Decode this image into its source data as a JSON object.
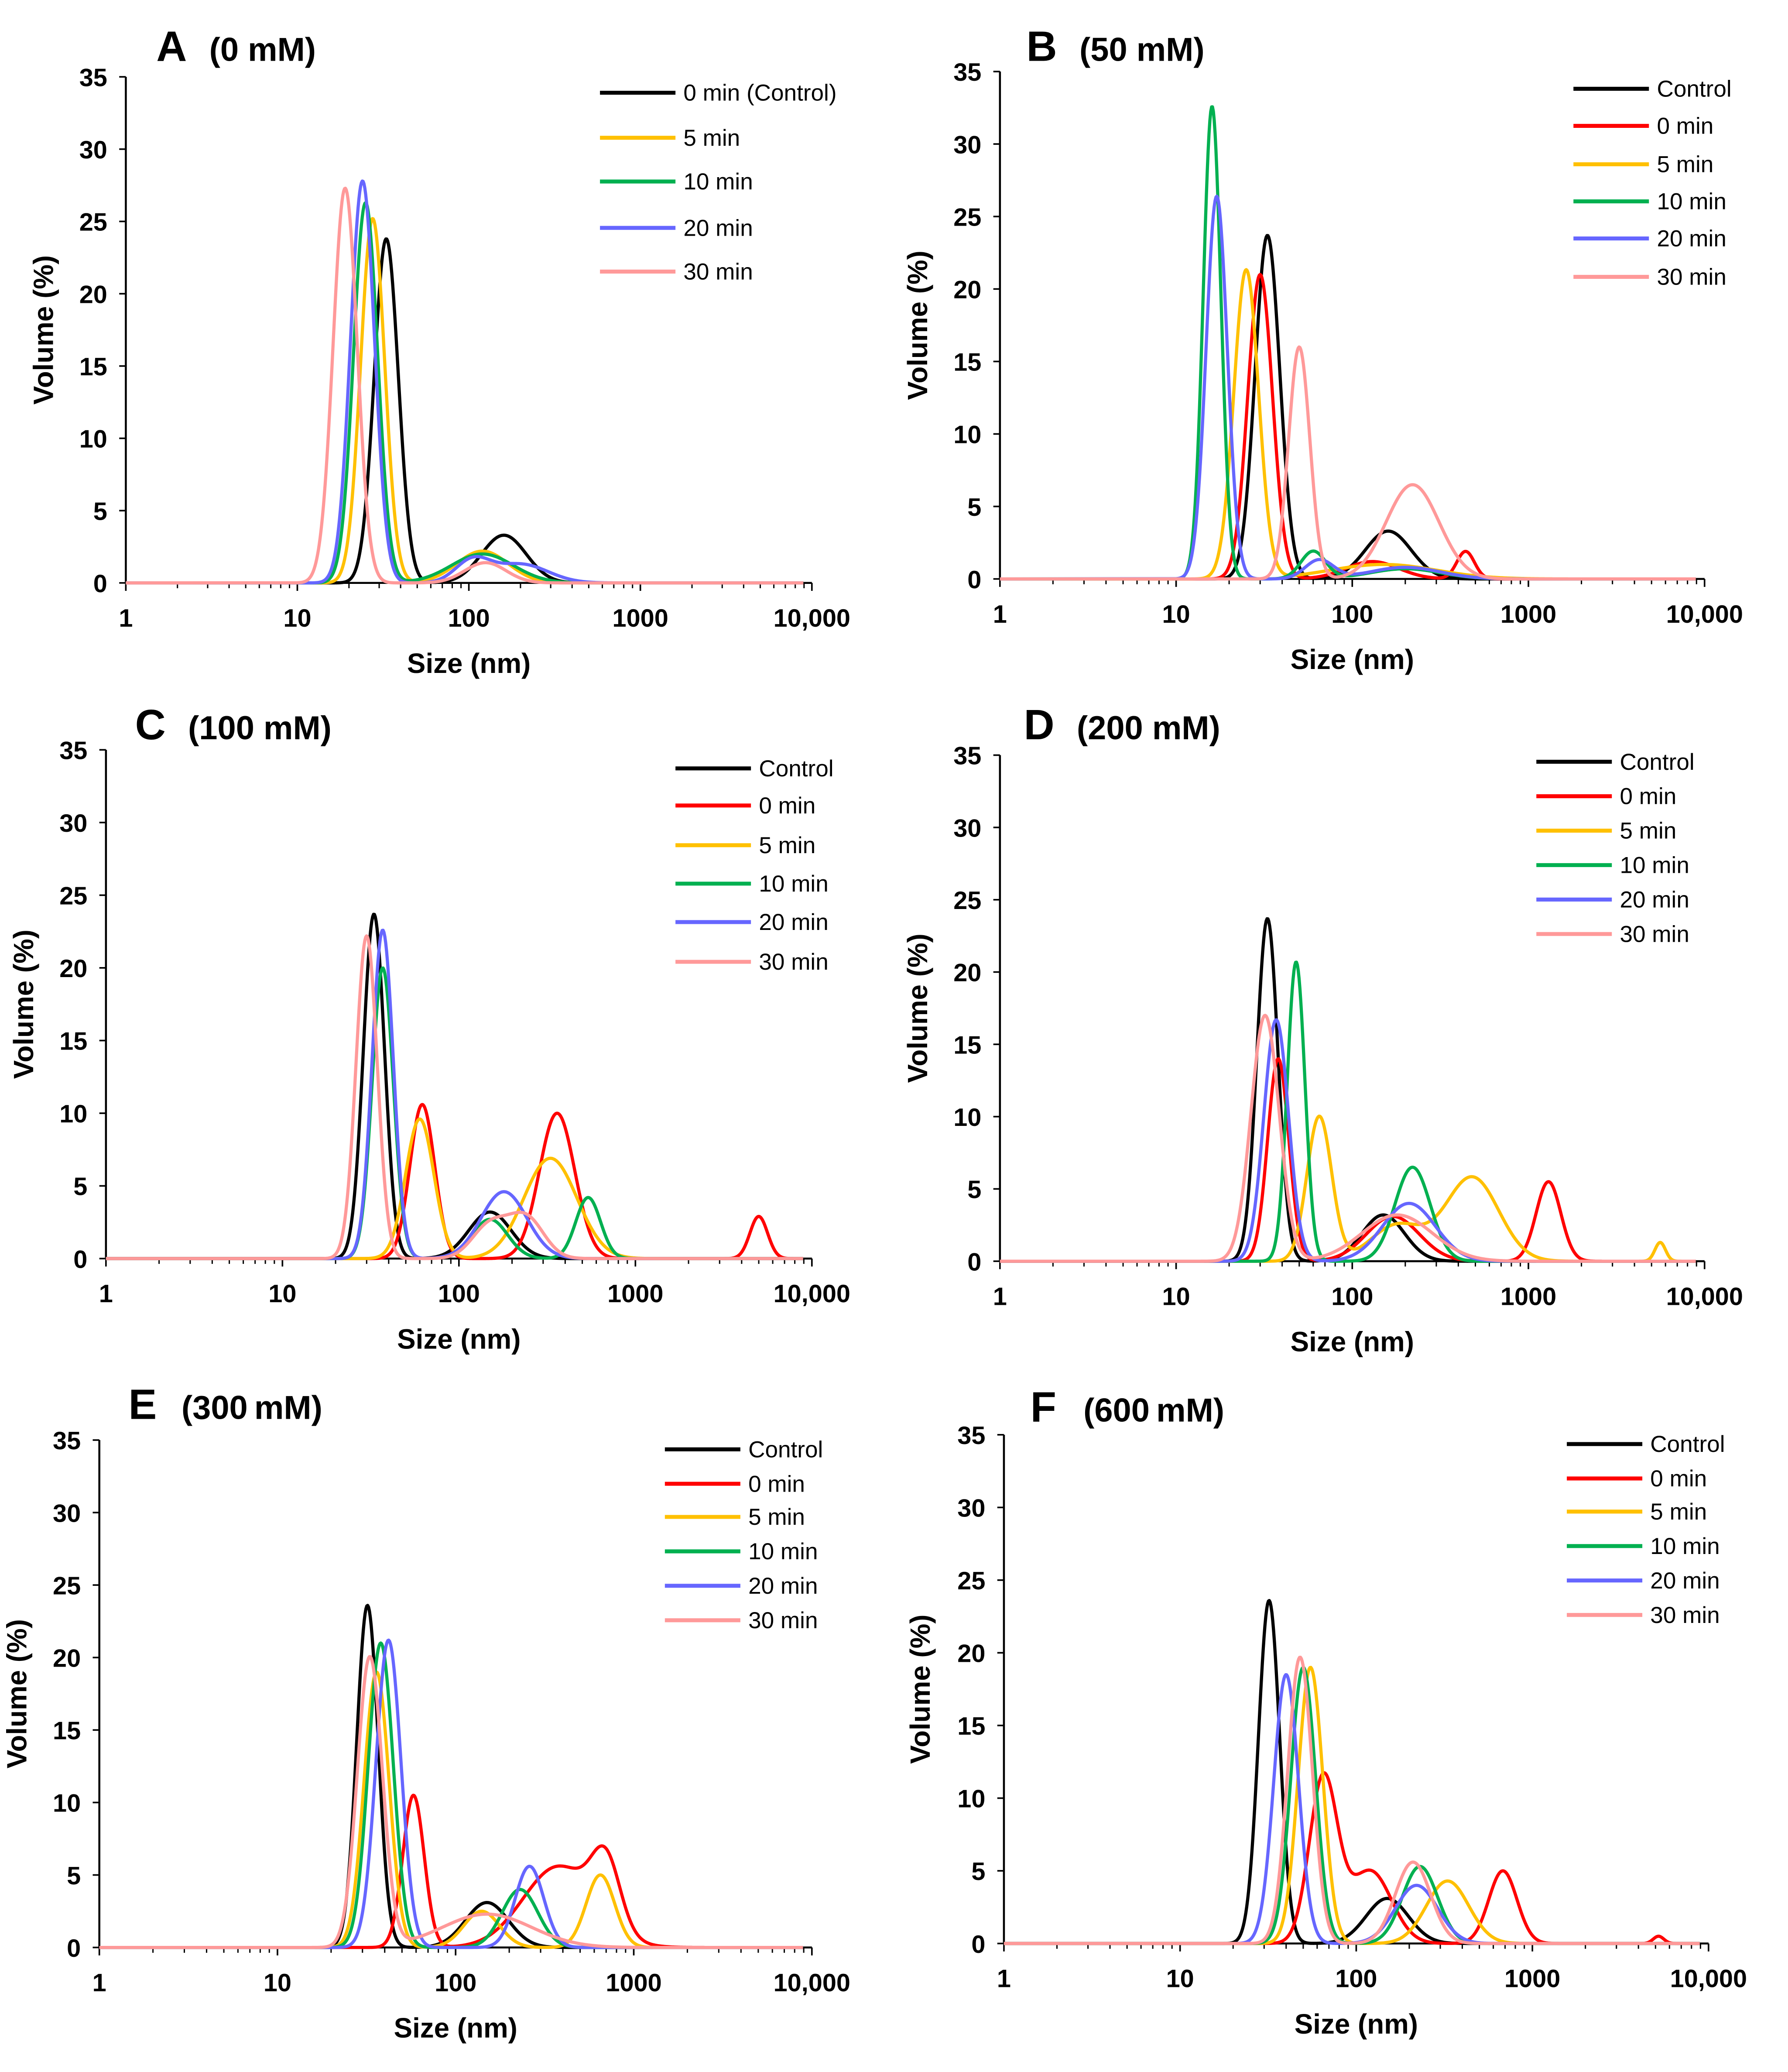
{
  "colors": {
    "Control": "#000000",
    "0 min": "#ff0000",
    "5 min": "#ffc000",
    "10 min": "#00b050",
    "20 min": "#6666ff",
    "30 min": "#ff9999"
  },
  "chart_data": [
    {
      "type": "line",
      "panel": "A",
      "title": "(0 mM)",
      "xlabel": "Size (nm)",
      "ylabel": "Volume (%)",
      "xscale": "log",
      "xlim": [
        1,
        10000
      ],
      "ylim": [
        0,
        35
      ],
      "xticks": [
        "1",
        "10",
        "100",
        "1000",
        "10,000"
      ],
      "yticks": [
        "0",
        "5",
        "10",
        "15",
        "20",
        "25",
        "30",
        "35"
      ],
      "legend": "top-right",
      "peak_model": "gaussian in log10(size): [center_nm, height_pct, width_decades]",
      "series": [
        {
          "name": "0 min (Control)",
          "color_key": "Control",
          "peaks": [
            [
              33,
              23.8,
              0.07
            ],
            [
              160,
              3.3,
              0.13
            ]
          ]
        },
        {
          "name": "5 min",
          "color_key": "5 min",
          "peaks": [
            [
              27.5,
              25.2,
              0.07
            ],
            [
              120,
              2.2,
              0.15
            ]
          ]
        },
        {
          "name": "10 min",
          "color_key": "10 min",
          "peaks": [
            [
              25,
              26.3,
              0.07
            ],
            [
              120,
              2.0,
              0.18
            ]
          ]
        },
        {
          "name": "20 min",
          "color_key": "20 min",
          "peaks": [
            [
              24,
              27.8,
              0.07
            ],
            [
              105,
              1.5,
              0.1
            ],
            [
              200,
              1.3,
              0.16
            ]
          ]
        },
        {
          "name": "30 min",
          "color_key": "30 min",
          "peaks": [
            [
              19,
              27.3,
              0.07
            ],
            [
              125,
              1.4,
              0.12
            ]
          ]
        }
      ]
    },
    {
      "type": "line",
      "panel": "B",
      "title": "(50 mM)",
      "xlabel": "Size (nm)",
      "ylabel": "Volume  (%)",
      "xscale": "log",
      "xlim": [
        1,
        10000
      ],
      "ylim": [
        0,
        35
      ],
      "xticks": [
        "1",
        "10",
        "100",
        "1000",
        "10,000"
      ],
      "yticks": [
        "0",
        "5",
        "10",
        "15",
        "20",
        "25",
        "30",
        "35"
      ],
      "legend": "top-right",
      "series": [
        {
          "name": "Control",
          "color_key": "Control",
          "peaks": [
            [
              33,
              23.7,
              0.07
            ],
            [
              160,
              3.3,
              0.13
            ]
          ]
        },
        {
          "name": "0 min",
          "color_key": "0 min",
          "peaks": [
            [
              30,
              21,
              0.07
            ],
            [
              130,
              1.2,
              0.15
            ],
            [
              440,
              1.9,
              0.05
            ]
          ]
        },
        {
          "name": "5 min",
          "color_key": "5 min",
          "peaks": [
            [
              25,
              21.3,
              0.07
            ],
            [
              150,
              1.0,
              0.3
            ]
          ]
        },
        {
          "name": "10 min",
          "color_key": "10 min",
          "peaks": [
            [
              16,
              32.6,
              0.05
            ],
            [
              60,
              1.9,
              0.07
            ],
            [
              200,
              0.7,
              0.2
            ]
          ]
        },
        {
          "name": "20 min",
          "color_key": "20 min",
          "peaks": [
            [
              17,
              26.4,
              0.06
            ],
            [
              65,
              1.3,
              0.08
            ],
            [
              200,
              0.8,
              0.2
            ]
          ]
        },
        {
          "name": "30 min",
          "color_key": "30 min",
          "peaks": [
            [
              50,
              16,
              0.06
            ],
            [
              220,
              6.5,
              0.15
            ]
          ]
        }
      ]
    },
    {
      "type": "line",
      "panel": "C",
      "title": "(100 mM)",
      "xlabel": "Size (nm)",
      "ylabel": "Volume   (%)",
      "xscale": "log",
      "xlim": [
        1,
        10000
      ],
      "ylim": [
        0,
        35
      ],
      "xticks": [
        "1",
        "10",
        "100",
        "1000",
        "10,000"
      ],
      "yticks": [
        "0",
        "5",
        "10",
        "15",
        "20",
        "25",
        "30",
        "35"
      ],
      "legend": "top-right",
      "series": [
        {
          "name": "Control",
          "color_key": "Control",
          "peaks": [
            [
              33,
              23.7,
              0.06
            ],
            [
              150,
              3.2,
              0.12
            ]
          ]
        },
        {
          "name": "0 min",
          "color_key": "0 min",
          "peaks": [
            [
              62,
              10.6,
              0.07
            ],
            [
              360,
              10,
              0.1
            ],
            [
              5000,
              2.9,
              0.05
            ]
          ]
        },
        {
          "name": "5 min",
          "color_key": "5 min",
          "peaks": [
            [
              60,
              9.6,
              0.08
            ],
            [
              330,
              6.9,
              0.15
            ]
          ]
        },
        {
          "name": "10 min",
          "color_key": "10 min",
          "peaks": [
            [
              37,
              20,
              0.06
            ],
            [
              150,
              2.7,
              0.1
            ],
            [
              540,
              4.2,
              0.07
            ]
          ]
        },
        {
          "name": "20 min",
          "color_key": "20 min",
          "peaks": [
            [
              37,
              22.6,
              0.06
            ],
            [
              180,
              4.6,
              0.13
            ]
          ]
        },
        {
          "name": "30 min",
          "color_key": "30 min",
          "peaks": [
            [
              30,
              22.2,
              0.06
            ],
            [
              150,
              2.3,
              0.1
            ],
            [
              240,
              2.8,
              0.1
            ]
          ]
        }
      ]
    },
    {
      "type": "line",
      "panel": "D",
      "title": "(200 mM)",
      "xlabel": "Size (nm)",
      "ylabel": "Volume   (%)",
      "xscale": "log",
      "xlim": [
        1,
        10000
      ],
      "ylim": [
        0,
        35
      ],
      "xticks": [
        "1",
        "10",
        "100",
        "1000",
        "10,000"
      ],
      "yticks": [
        "0",
        "5",
        "10",
        "15",
        "20",
        "25",
        "30",
        "35"
      ],
      "legend": "top-right",
      "series": [
        {
          "name": "Control",
          "color_key": "Control",
          "peaks": [
            [
              33,
              23.7,
              0.06
            ],
            [
              150,
              3.2,
              0.12
            ]
          ]
        },
        {
          "name": "0 min",
          "color_key": "0 min",
          "peaks": [
            [
              38,
              14,
              0.06
            ],
            [
              170,
              3.1,
              0.15
            ],
            [
              1300,
              5.5,
              0.07
            ]
          ]
        },
        {
          "name": "5 min",
          "color_key": "5 min",
          "peaks": [
            [
              65,
              10,
              0.07
            ],
            [
              180,
              2.5,
              0.15
            ],
            [
              480,
              5.8,
              0.15
            ],
            [
              5600,
              1.3,
              0.03
            ]
          ]
        },
        {
          "name": "10 min",
          "color_key": "10 min",
          "peaks": [
            [
              48,
              20.7,
              0.05
            ],
            [
              220,
              6.5,
              0.1
            ]
          ]
        },
        {
          "name": "20 min",
          "color_key": "20 min",
          "peaks": [
            [
              37,
              16.7,
              0.07
            ],
            [
              210,
              4.0,
              0.15
            ]
          ]
        },
        {
          "name": "30 min",
          "color_key": "30 min",
          "peaks": [
            [
              32,
              17,
              0.08
            ],
            [
              180,
              3.2,
              0.2
            ]
          ]
        }
      ]
    },
    {
      "type": "line",
      "panel": "E",
      "title": "(300 mM)",
      "xlabel": "Size (nm)",
      "ylabel": "Volume   (%)",
      "xscale": "log",
      "xlim": [
        1,
        10000
      ],
      "ylim": [
        0,
        35
      ],
      "xticks": [
        "1",
        "10",
        "100",
        "1000",
        "10,000"
      ],
      "yticks": [
        "0",
        "5",
        "10",
        "15",
        "20",
        "25",
        "30",
        "35"
      ],
      "legend": "top-right",
      "series": [
        {
          "name": "Control",
          "color_key": "Control",
          "peaks": [
            [
              32,
              23.6,
              0.06
            ],
            [
              150,
              3.1,
              0.12
            ]
          ]
        },
        {
          "name": "0 min",
          "color_key": "0 min",
          "peaks": [
            [
              58,
              10.5,
              0.06
            ],
            [
              380,
              5.6,
              0.2
            ],
            [
              700,
              4.5,
              0.08
            ]
          ]
        },
        {
          "name": "5 min",
          "color_key": "5 min",
          "peaks": [
            [
              36,
              19,
              0.07
            ],
            [
              140,
              2.5,
              0.1
            ],
            [
              650,
              5,
              0.08
            ]
          ]
        },
        {
          "name": "10 min",
          "color_key": "10 min",
          "peaks": [
            [
              38,
              21,
              0.07
            ],
            [
              230,
              4.0,
              0.1
            ]
          ]
        },
        {
          "name": "20 min",
          "color_key": "20 min",
          "peaks": [
            [
              42,
              21.2,
              0.07
            ],
            [
              260,
              5.6,
              0.08
            ]
          ]
        },
        {
          "name": "30 min",
          "color_key": "30 min",
          "peaks": [
            [
              33,
              20,
              0.07
            ],
            [
              150,
              2.3,
              0.25
            ]
          ]
        }
      ]
    },
    {
      "type": "line",
      "panel": "F",
      "title": "(600 mM)",
      "xlabel": "Size (nm)",
      "ylabel": "Volume   (%)",
      "xscale": "log",
      "xlim": [
        1,
        10000
      ],
      "ylim": [
        0,
        35
      ],
      "xticks": [
        "1",
        "10",
        "100",
        "1000",
        "10,000"
      ],
      "yticks": [
        "0",
        "5",
        "10",
        "15",
        "20",
        "25",
        "30",
        "35"
      ],
      "legend": "top-right",
      "series": [
        {
          "name": "Control",
          "color_key": "Control",
          "peaks": [
            [
              32,
              23.6,
              0.06
            ],
            [
              150,
              3.1,
              0.12
            ]
          ]
        },
        {
          "name": "0 min",
          "color_key": "0 min",
          "peaks": [
            [
              65,
              11.3,
              0.08
            ],
            [
              120,
              5,
              0.12
            ],
            [
              680,
              5,
              0.08
            ],
            [
              5200,
              0.5,
              0.03
            ]
          ]
        },
        {
          "name": "5 min",
          "color_key": "5 min",
          "peaks": [
            [
              55,
              19,
              0.07
            ],
            [
              330,
              4.3,
              0.12
            ]
          ]
        },
        {
          "name": "10 min",
          "color_key": "10 min",
          "peaks": [
            [
              50,
              19,
              0.07
            ],
            [
              230,
              5.3,
              0.1
            ]
          ]
        },
        {
          "name": "20 min",
          "color_key": "20 min",
          "peaks": [
            [
              40,
              18.5,
              0.07
            ],
            [
              220,
              4.0,
              0.12
            ]
          ]
        },
        {
          "name": "30 min",
          "color_key": "30 min",
          "peaks": [
            [
              48,
              19.7,
              0.07
            ],
            [
              210,
              5.6,
              0.1
            ]
          ]
        }
      ]
    }
  ]
}
